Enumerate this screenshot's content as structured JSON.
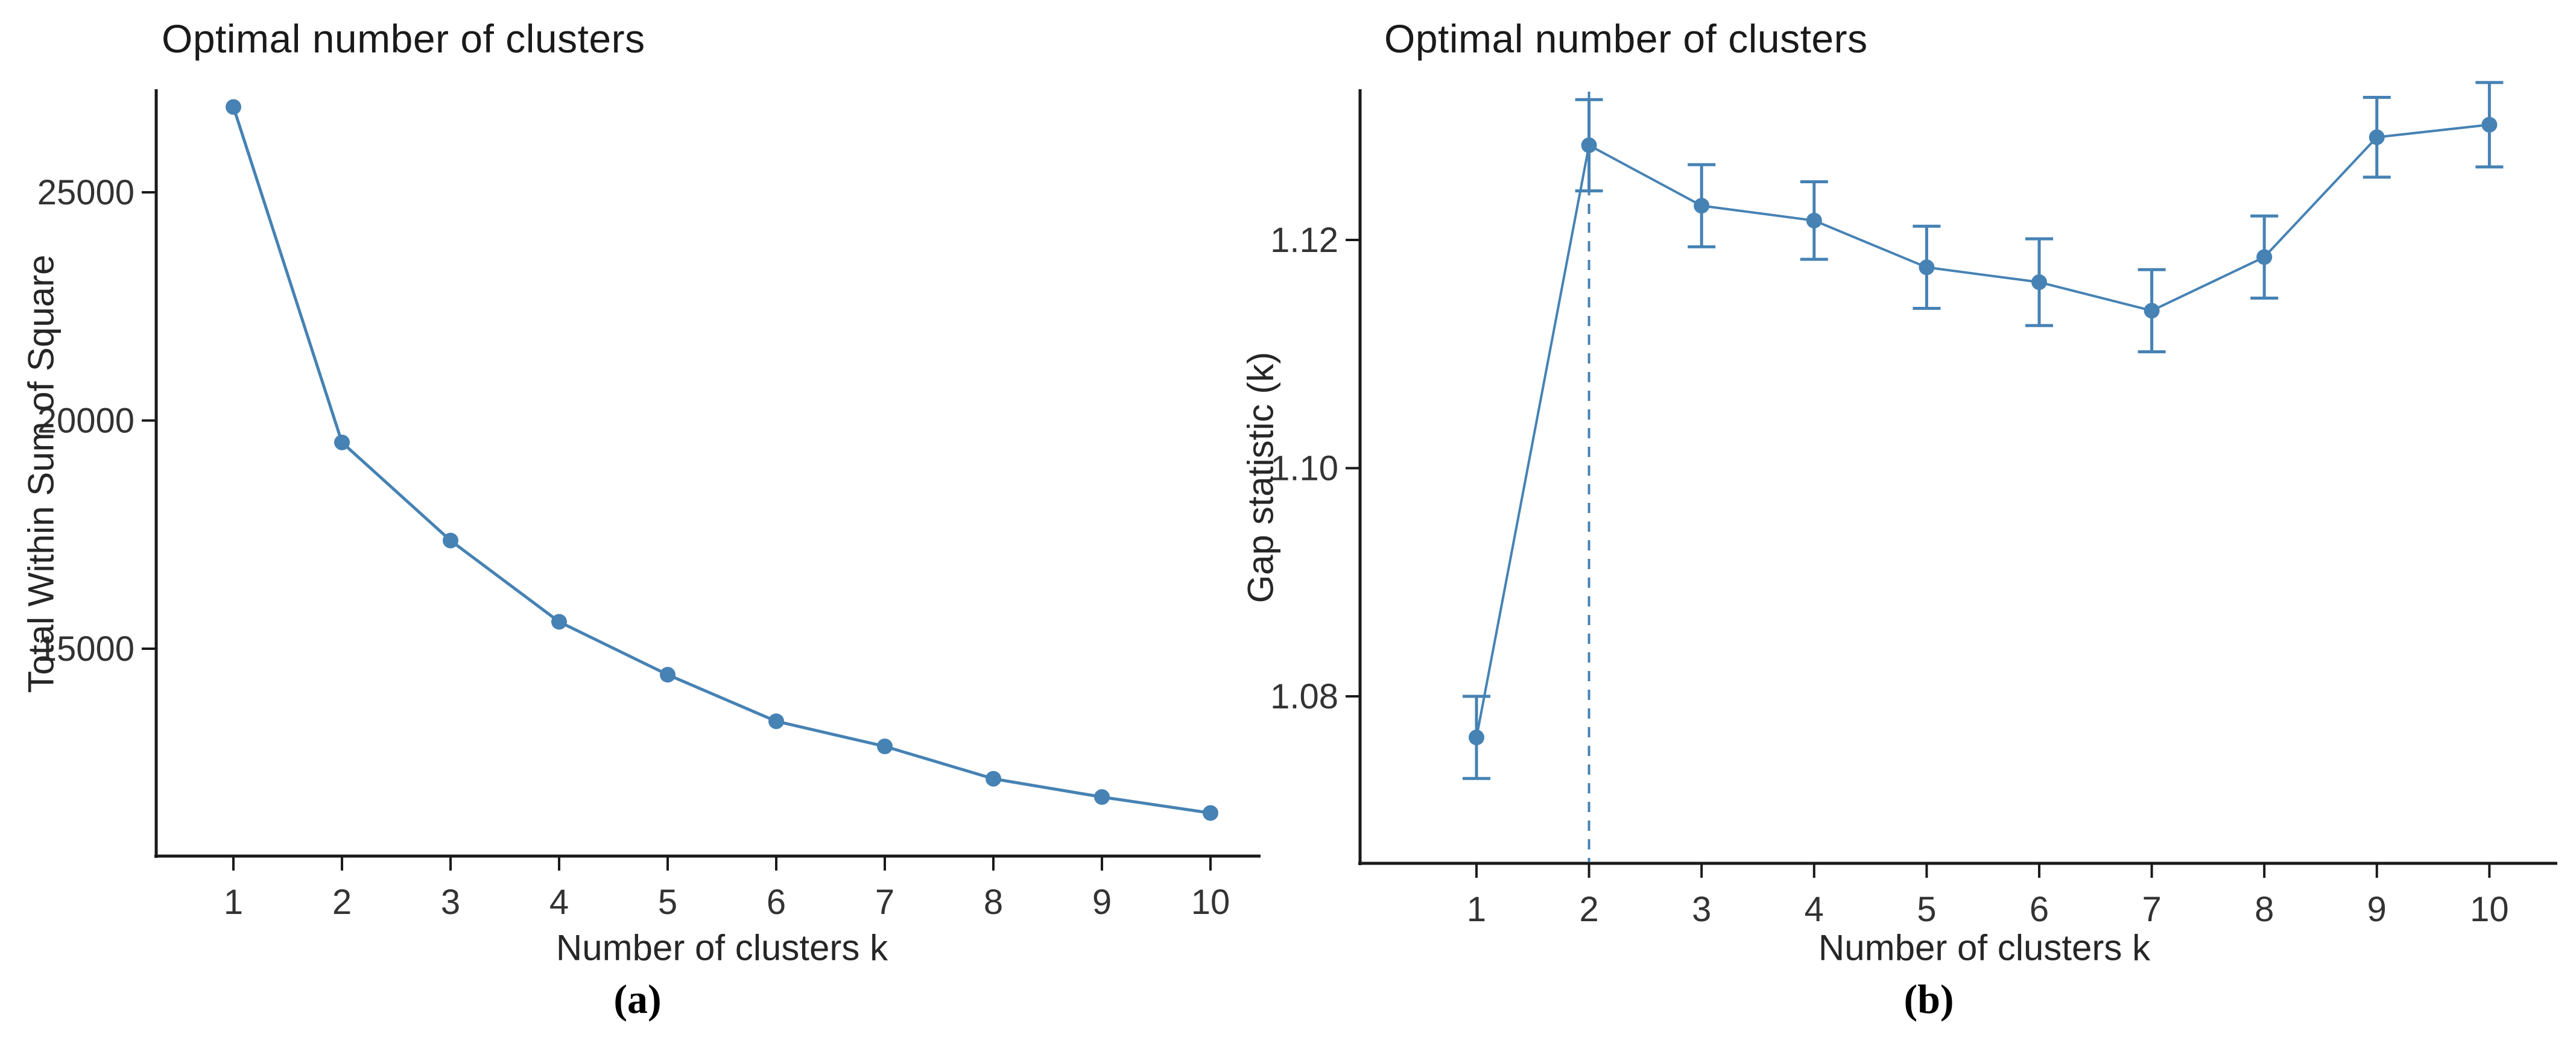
{
  "figure": {
    "background": "#ffffff",
    "accent": "#4682b4",
    "axis_color": "#1a1a1a",
    "tick_text_color": "#333333",
    "captions": {
      "a": "(a)",
      "b": "(b)"
    }
  },
  "chart_data": [
    {
      "id": "elbow",
      "type": "line",
      "title": "Optimal number of clusters",
      "xlabel": "Number of clusters k",
      "ylabel": "Total Within Sum of Square",
      "legend_position": "none",
      "grid": false,
      "marker": "circle",
      "line_color": "#4682b4",
      "x": [
        1,
        2,
        3,
        4,
        5,
        6,
        7,
        8,
        9,
        10
      ],
      "xtick_labels": [
        "1",
        "2",
        "3",
        "4",
        "5",
        "6",
        "7",
        "8",
        "9",
        "10"
      ],
      "values": [
        26870,
        19520,
        17370,
        15590,
        14430,
        13410,
        12860,
        12150,
        11750,
        11400
      ],
      "yticks": [
        15000,
        20000,
        25000
      ],
      "ytick_labels": [
        "15000",
        "20000",
        "25000"
      ],
      "ylim": [
        11000,
        27600
      ],
      "xlim": [
        0.4,
        10.6
      ]
    },
    {
      "id": "gap",
      "type": "line",
      "title": "Optimal number of clusters",
      "xlabel": "Number of clusters k",
      "ylabel": "Gap statistic (k)",
      "legend_position": "none",
      "grid": false,
      "marker": "circle",
      "line_color": "#4682b4",
      "error_bars": true,
      "x": [
        1,
        2,
        3,
        4,
        5,
        6,
        7,
        8,
        9,
        10
      ],
      "xtick_labels": [
        "1",
        "2",
        "3",
        "4",
        "5",
        "6",
        "7",
        "8",
        "9",
        "10"
      ],
      "values": [
        1.0764,
        1.1283,
        1.123,
        1.1217,
        1.1176,
        1.1163,
        1.1138,
        1.1185,
        1.129,
        1.1301
      ],
      "se": [
        0.0036,
        0.004,
        0.0036,
        0.0034,
        0.0036,
        0.0038,
        0.0036,
        0.0036,
        0.0035,
        0.0037
      ],
      "yticks": [
        1.08,
        1.1,
        1.12
      ],
      "ytick_labels": [
        "1.08",
        "1.10",
        "1.12"
      ],
      "ylim": [
        1.057,
        1.134
      ],
      "xlim": [
        0.4,
        10.6
      ],
      "vline": {
        "x": 2,
        "style": "dashed"
      }
    }
  ]
}
